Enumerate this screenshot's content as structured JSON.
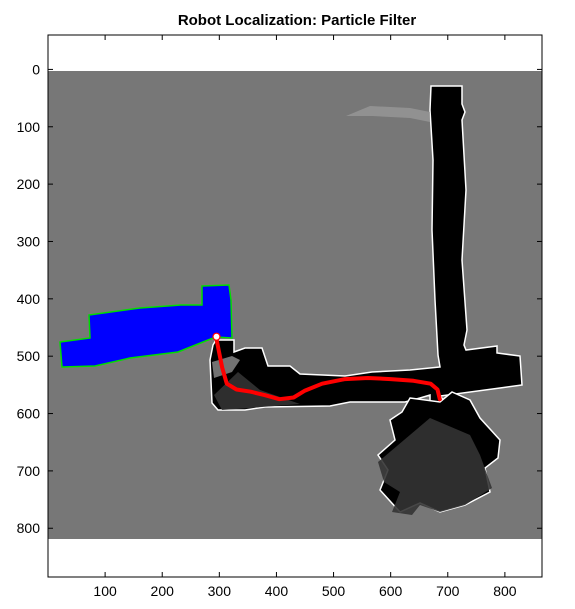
{
  "chart_data": {
    "type": "map",
    "title": "Robot Localization: Particle Filter",
    "xlim": [
      0,
      865
    ],
    "ylim": [
      -60,
      885
    ],
    "y_reversed": true,
    "map_extent": {
      "x": [
        0,
        865
      ],
      "y": [
        0,
        828
      ]
    },
    "x_ticks": [
      "100",
      "200",
      "300",
      "400",
      "500",
      "600",
      "700",
      "800"
    ],
    "y_ticks": [
      "0",
      "100",
      "200",
      "300",
      "400",
      "500",
      "600",
      "700",
      "800"
    ],
    "grid": false,
    "colors": {
      "unknown": "#777777",
      "free": "#000000",
      "occupied": "#ffffff",
      "scan_rays": "#0000ff",
      "scan_hits": "#00dd00",
      "path": "#ff0000",
      "robot": "#ffffff"
    },
    "robot_path": [
      [
        686,
        575
      ],
      [
        682,
        558
      ],
      [
        670,
        548
      ],
      [
        640,
        543
      ],
      [
        600,
        540
      ],
      [
        560,
        538
      ],
      [
        520,
        540
      ],
      [
        480,
        548
      ],
      [
        450,
        560
      ],
      [
        430,
        572
      ],
      [
        405,
        575
      ],
      [
        380,
        568
      ],
      [
        355,
        562
      ],
      [
        330,
        558
      ],
      [
        313,
        548
      ],
      [
        305,
        520
      ],
      [
        300,
        495
      ],
      [
        295,
        470
      ]
    ],
    "robot_pose": [
      295,
      466
    ]
  }
}
